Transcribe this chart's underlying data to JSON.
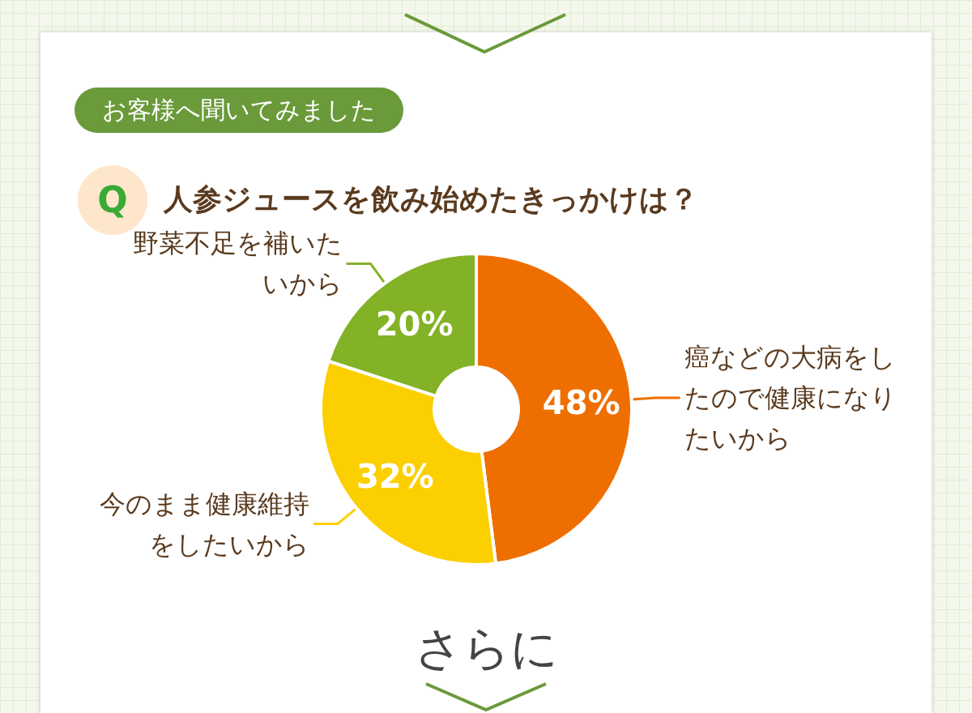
{
  "chart_data": {
    "type": "donut",
    "subtitle": "お客様へ聞いてみました",
    "title": "人参ジュースを飲み始めたきっかけは？",
    "categories": [
      "癌などの大病をしたので健康になりたいから",
      "今のまま健康維持をしたいから",
      "野菜不足を補いたいから"
    ],
    "values": [
      48,
      32,
      20
    ],
    "colors": [
      "#ee6f00",
      "#fccf00",
      "#83b226"
    ],
    "value_labels": [
      "48%",
      "32%",
      "20%"
    ],
    "annotations": [
      "Q",
      "さらに"
    ]
  }
}
